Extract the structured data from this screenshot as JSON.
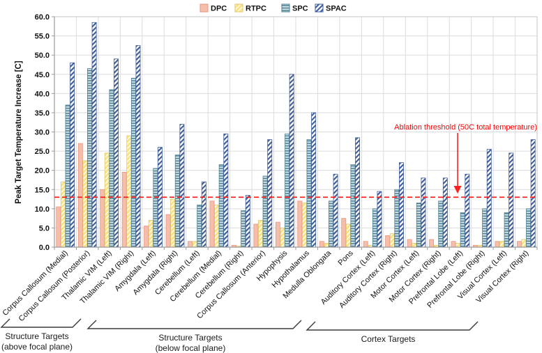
{
  "chart_data": {
    "type": "bar",
    "title": "",
    "ylabel": "Peak Target Temperature Increase [C]",
    "xlabel": "",
    "ylim": [
      0,
      60
    ],
    "ytick_step": 5,
    "ytick_decimals": 1,
    "grid": true,
    "legend_position": "top-center",
    "categories": [
      "Corpus Callosum (Medial)",
      "Corpus Callosum (Posterior)",
      "Thalamic VIM (Left)",
      "Thalamic VIM (Right)",
      "Amygdala (Left)",
      "Amygdala (Right)",
      "Cerebellum (Left)",
      "Cerebellum (Medial)",
      "Cerebellum (Right)",
      "Corpus Callosum (Anterior)",
      "Hypophysis",
      "Hypothalamus",
      "Medulla Oblongata",
      "Pons",
      "Auditory Cortex (Left)",
      "Auditory Cortex (Right)",
      "Motor Cortex (Left)",
      "Motor Cortex (Right)",
      "Prefrontal Lobe (Left)",
      "Prefrontal Lobe (Right)",
      "Visual Cortex (Left)",
      "Visual Cortex (Right)"
    ],
    "series": [
      {
        "name": "DPC",
        "pattern": "solid",
        "fill": "#F7BDAB",
        "stroke": "#E8957F",
        "values": [
          10.5,
          27,
          15,
          19.5,
          5.5,
          8.5,
          1.5,
          12,
          0.5,
          6,
          6.5,
          12,
          1.5,
          7.5,
          1.5,
          3,
          2,
          2,
          1.5,
          0.5,
          1.5,
          1.5
        ]
      },
      {
        "name": "RTPC",
        "pattern": "diagonal-yellow",
        "fill": "#FAE385",
        "stroke": "#DFC66B",
        "values": [
          17,
          22.5,
          24.5,
          29,
          7,
          12.5,
          1.5,
          11,
          0.3,
          7,
          5,
          11.5,
          1,
          6,
          0.5,
          3.5,
          1,
          0.5,
          1,
          0.5,
          1.5,
          2
        ]
      },
      {
        "name": "SPC",
        "pattern": "horizontal-teal",
        "fill": "#D2E1E6",
        "stroke": "#4A7F92",
        "values": [
          37,
          46.5,
          41,
          44,
          20.5,
          24,
          11,
          21.5,
          9.5,
          18.5,
          29.5,
          28,
          12,
          21.5,
          10,
          15,
          11.5,
          12,
          9,
          10,
          9,
          10
        ]
      },
      {
        "name": "SPAC",
        "pattern": "diagonal-navy",
        "fill": "#FFFFFF",
        "stroke": "#3D5B99",
        "values": [
          48,
          58.5,
          49,
          52.5,
          26,
          32,
          17,
          29.5,
          13.5,
          28,
          45,
          35,
          19,
          28.5,
          14.5,
          22,
          18,
          18,
          19,
          25.5,
          24.5,
          28
        ]
      }
    ],
    "threshold_line": {
      "value": 13,
      "color": "#FF0000",
      "style": "dashed",
      "label": "Ablation threshold (50C total temperature)"
    },
    "group_brackets": [
      {
        "label1": "Structure Targets",
        "label2": "(above focal plane)",
        "x_from": 2,
        "x_to": 104,
        "y": 470
      },
      {
        "label1": "Structure Targets",
        "label2": "(below focal plane)",
        "x_from": 126,
        "x_to": 420,
        "y": 472
      },
      {
        "label1": "Cortex Targets",
        "label2": "",
        "x_from": 440,
        "x_to": 673,
        "y": 474
      }
    ]
  }
}
